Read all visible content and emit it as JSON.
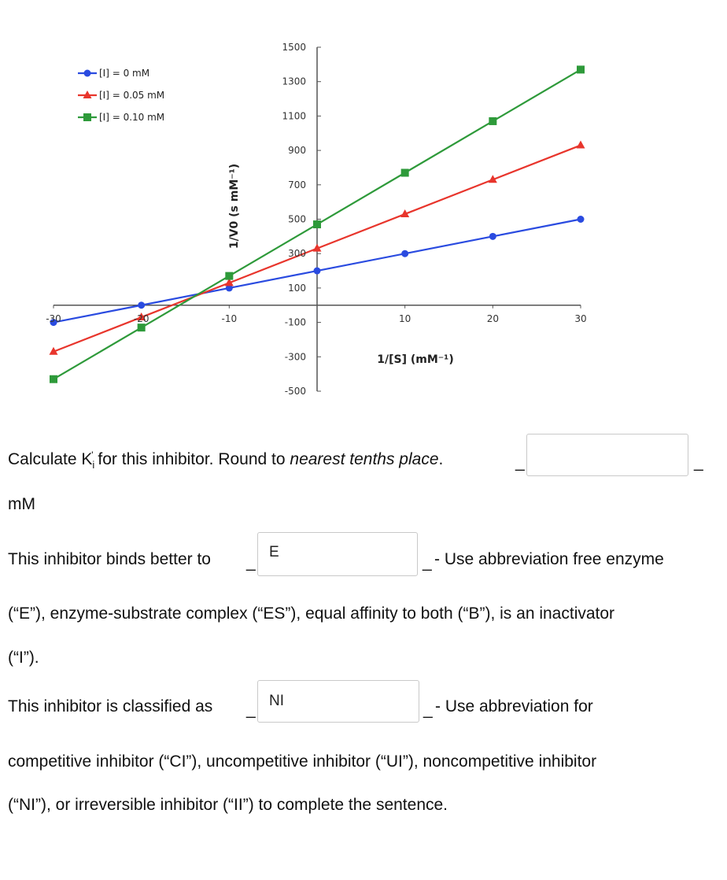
{
  "chart_data": {
    "type": "line",
    "xlabel": "1/[S] (mM⁻¹)",
    "ylabel": "1/V0 (s mM⁻¹)",
    "xlim": [
      -30,
      30
    ],
    "ylim": [
      -500,
      1500
    ],
    "xticks": [
      -30,
      -20,
      -10,
      0,
      10,
      20,
      30
    ],
    "xtick_labels": [
      "-30",
      "-20",
      "-10",
      "0",
      "10",
      "20",
      "30"
    ],
    "yticks": [
      1500,
      1300,
      1100,
      900,
      700,
      500,
      300,
      100,
      -100,
      -300,
      -500
    ],
    "ytick_labels": [
      "1500",
      "1300",
      "1100",
      "900",
      "700",
      "500",
      "300",
      "100",
      "-100",
      "-300",
      "-500"
    ],
    "grid": false,
    "legend_position": "top-left",
    "series": [
      {
        "name": "[I] = 0 mM",
        "color": "#2a4be0",
        "marker": "circle",
        "x": [
          -30,
          -20,
          -10,
          0,
          10,
          20,
          30
        ],
        "y": [
          -100,
          0,
          100,
          200,
          300,
          400,
          500
        ]
      },
      {
        "name": "[I] = 0.05 mM",
        "color": "#e8352c",
        "marker": "triangle",
        "x": [
          -30,
          -20,
          -10,
          0,
          10,
          20,
          30
        ],
        "y": [
          -270,
          -70,
          130,
          330,
          530,
          730,
          930
        ]
      },
      {
        "name": "[I] = 0.10 mM",
        "color": "#2e9a3a",
        "marker": "square",
        "x": [
          -30,
          -20,
          -10,
          0,
          10,
          20,
          30
        ],
        "y": [
          -430,
          -130,
          170,
          470,
          770,
          1070,
          1370
        ]
      }
    ]
  },
  "questions": {
    "q1": {
      "prefix": "Calculate K",
      "sub": "i",
      "sup": "'",
      "text_before_italic": " for this inhibitor. Round to ",
      "italic": "nearest tenths place",
      "text_after_italic": ".",
      "answer": "",
      "unit": "mM"
    },
    "q2": {
      "prefix": "This inhibitor binds better to",
      "answer": "E",
      "suffix": "- Use abbreviation free enzyme",
      "line2": "(“E”), enzyme-substrate complex (“ES”), equal affinity to both (“B”), is an inactivator",
      "line3": "(“I”)."
    },
    "q3": {
      "prefix": "This inhibitor is classified as",
      "answer": "NI",
      "suffix": "- Use abbreviation for",
      "line2": "competitive inhibitor (“CI”), uncompetitive inhibitor (“UI”), noncompetitive inhibitor",
      "line3": "(“NI”), or irreversible inhibitor (“II”) to complete the sentence."
    },
    "blank_mark": "_"
  }
}
